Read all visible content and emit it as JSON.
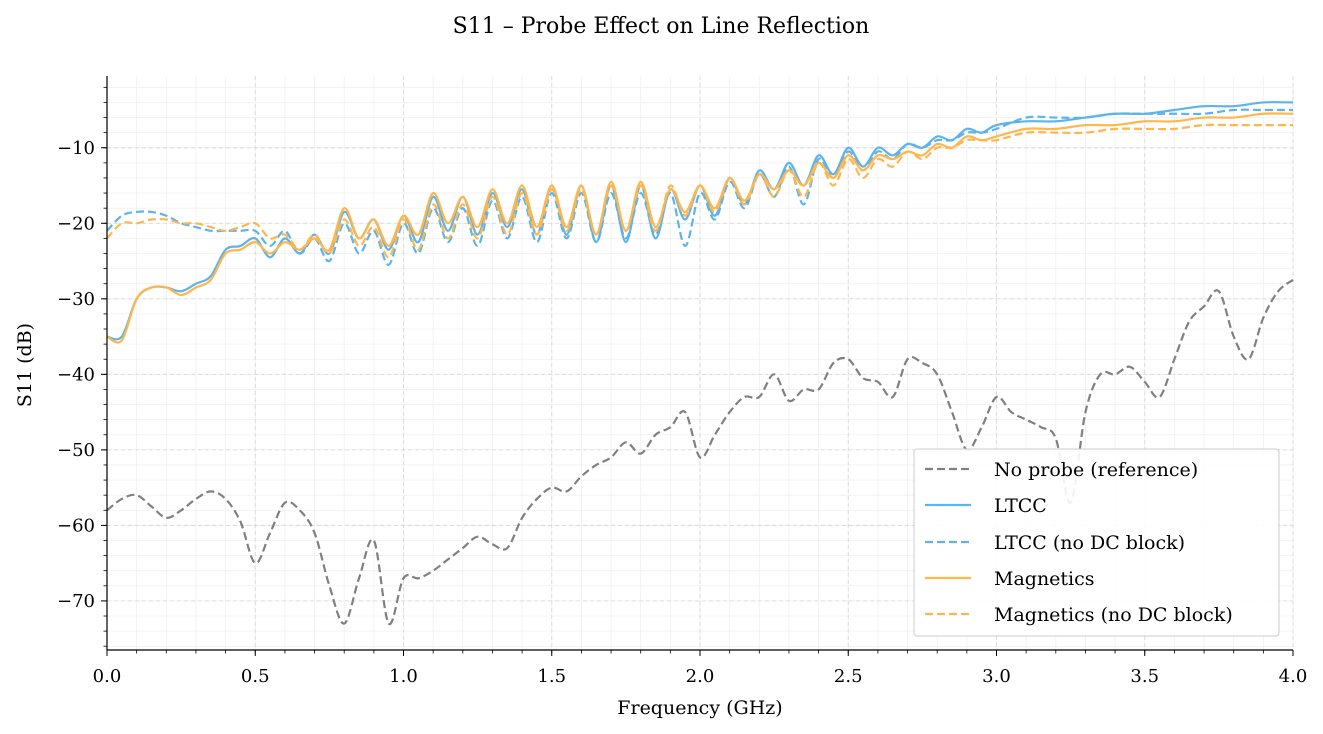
{
  "chart_data": {
    "type": "line",
    "title": "S11 – Probe Effect on Line Reflection",
    "xlabel": "Frequency (GHz)",
    "ylabel": "S11 (dB)",
    "xlim": [
      0.0,
      4.0
    ],
    "ylim": [
      -76.5,
      -0.5
    ],
    "xticks": [
      0.0,
      0.5,
      1.0,
      1.5,
      2.0,
      2.5,
      3.0,
      3.5,
      4.0
    ],
    "xtick_labels": [
      "0.0",
      "0.5",
      "1.0",
      "1.5",
      "2.0",
      "2.5",
      "3.0",
      "3.5",
      "4.0"
    ],
    "yticks": [
      -70,
      -60,
      -50,
      -40,
      -30,
      -20,
      -10
    ],
    "ytick_labels": [
      "−70",
      "−60",
      "−50",
      "−40",
      "−30",
      "−20",
      "−10"
    ],
    "grid": true,
    "minor_grid": true,
    "legend_position": "lower-right",
    "series": [
      {
        "name": "No probe (reference)",
        "color": "#808080",
        "dash": "dashed",
        "x": [
          0.0,
          0.05,
          0.1,
          0.15,
          0.2,
          0.25,
          0.3,
          0.35,
          0.4,
          0.45,
          0.5,
          0.55,
          0.6,
          0.65,
          0.7,
          0.75,
          0.8,
          0.85,
          0.9,
          0.95,
          1.0,
          1.05,
          1.1,
          1.15,
          1.2,
          1.25,
          1.3,
          1.35,
          1.4,
          1.45,
          1.5,
          1.55,
          1.6,
          1.65,
          1.7,
          1.75,
          1.8,
          1.85,
          1.9,
          1.95,
          2.0,
          2.05,
          2.1,
          2.15,
          2.2,
          2.25,
          2.3,
          2.35,
          2.4,
          2.45,
          2.5,
          2.55,
          2.6,
          2.65,
          2.7,
          2.75,
          2.8,
          2.85,
          2.9,
          2.95,
          3.0,
          3.05,
          3.1,
          3.15,
          3.2,
          3.25,
          3.3,
          3.35,
          3.4,
          3.45,
          3.5,
          3.55,
          3.6,
          3.65,
          3.7,
          3.75,
          3.8,
          3.85,
          3.9,
          3.95,
          4.0
        ],
        "y": [
          -58,
          -56.5,
          -56,
          -57.5,
          -59,
          -58,
          -56.5,
          -55.5,
          -56.5,
          -59.5,
          -65,
          -61,
          -57,
          -58,
          -61,
          -68,
          -73,
          -67,
          -62,
          -73,
          -67,
          -67,
          -66,
          -64.5,
          -63,
          -61.5,
          -62.5,
          -63,
          -59,
          -56.5,
          -55,
          -55.5,
          -53.5,
          -52,
          -51,
          -49,
          -50.5,
          -48,
          -47,
          -45,
          -51,
          -48,
          -45,
          -43,
          -43,
          -40,
          -43.5,
          -42,
          -42,
          -38.5,
          -38,
          -40.5,
          -41,
          -43,
          -38,
          -38.5,
          -40,
          -45,
          -50,
          -47,
          -43,
          -45,
          -46,
          -47,
          -48.5,
          -57,
          -45,
          -40,
          -40,
          -39,
          -41,
          -43,
          -38,
          -33,
          -31,
          -29,
          -35,
          -38,
          -32.5,
          -29,
          -27.5
        ]
      },
      {
        "name": "LTCC",
        "color": "#5DB3EB",
        "dash": "solid",
        "x": [
          0.0,
          0.05,
          0.1,
          0.15,
          0.2,
          0.25,
          0.3,
          0.35,
          0.4,
          0.45,
          0.5,
          0.55,
          0.6,
          0.65,
          0.7,
          0.75,
          0.8,
          0.85,
          0.9,
          0.95,
          1.0,
          1.05,
          1.1,
          1.15,
          1.2,
          1.25,
          1.3,
          1.35,
          1.4,
          1.45,
          1.5,
          1.55,
          1.6,
          1.65,
          1.7,
          1.75,
          1.8,
          1.85,
          1.9,
          1.95,
          2.0,
          2.05,
          2.1,
          2.15,
          2.2,
          2.25,
          2.3,
          2.35,
          2.4,
          2.45,
          2.5,
          2.55,
          2.6,
          2.65,
          2.7,
          2.75,
          2.8,
          2.85,
          2.9,
          2.95,
          3.0,
          3.1,
          3.2,
          3.3,
          3.4,
          3.5,
          3.6,
          3.7,
          3.8,
          3.9,
          4.0
        ],
        "y": [
          -35,
          -35,
          -30,
          -28.5,
          -28.5,
          -29,
          -28,
          -27,
          -23.5,
          -23,
          -22,
          -24.5,
          -22,
          -24,
          -21.5,
          -24,
          -18.5,
          -22,
          -19.5,
          -23.5,
          -19,
          -22.5,
          -16.5,
          -21,
          -16.5,
          -21.5,
          -16,
          -20.5,
          -15.5,
          -21.5,
          -15,
          -21.5,
          -15,
          -22.5,
          -15,
          -22.5,
          -15,
          -22,
          -15.5,
          -19.5,
          -15,
          -19,
          -14,
          -17.5,
          -13,
          -15.5,
          -12,
          -15,
          -11,
          -13.5,
          -10,
          -12.5,
          -10,
          -11,
          -9.5,
          -10,
          -8.5,
          -9,
          -7.5,
          -8,
          -7,
          -6.5,
          -6.5,
          -6,
          -5.5,
          -5.5,
          -5,
          -4.5,
          -4.5,
          -4,
          -4
        ]
      },
      {
        "name": "LTCC (no DC block)",
        "color": "#5DB3EB",
        "dash": "dashed",
        "x": [
          0.0,
          0.05,
          0.1,
          0.15,
          0.2,
          0.25,
          0.3,
          0.35,
          0.4,
          0.45,
          0.5,
          0.55,
          0.6,
          0.65,
          0.7,
          0.75,
          0.8,
          0.85,
          0.9,
          0.95,
          1.0,
          1.05,
          1.1,
          1.15,
          1.2,
          1.25,
          1.3,
          1.35,
          1.4,
          1.45,
          1.5,
          1.55,
          1.6,
          1.65,
          1.7,
          1.75,
          1.8,
          1.85,
          1.9,
          1.95,
          2.0,
          2.05,
          2.1,
          2.15,
          2.2,
          2.25,
          2.3,
          2.35,
          2.4,
          2.45,
          2.5,
          2.55,
          2.6,
          2.65,
          2.7,
          2.75,
          2.8,
          2.85,
          2.9,
          2.95,
          3.0,
          3.1,
          3.2,
          3.3,
          3.4,
          3.5,
          3.6,
          3.7,
          3.8,
          3.9,
          4.0
        ],
        "y": [
          -21,
          -19,
          -18.5,
          -18.5,
          -19,
          -20,
          -20.5,
          -21,
          -21,
          -21,
          -21,
          -23,
          -21,
          -24,
          -22,
          -25,
          -20,
          -24,
          -21,
          -25.5,
          -20,
          -24,
          -18,
          -22.5,
          -18,
          -23,
          -17,
          -22,
          -16.5,
          -22.5,
          -16,
          -22,
          -16,
          -22.5,
          -16,
          -22,
          -16,
          -21.5,
          -16,
          -23,
          -16,
          -19.5,
          -14.5,
          -18,
          -13.5,
          -16.5,
          -12.5,
          -17.5,
          -11.5,
          -14,
          -10.5,
          -13,
          -10.5,
          -11.5,
          -9.5,
          -10,
          -9,
          -9,
          -8,
          -8,
          -7.5,
          -6,
          -6,
          -6,
          -5.5,
          -5.5,
          -5.5,
          -5.5,
          -5,
          -5,
          -5
        ]
      },
      {
        "name": "Magnetics",
        "color": "#FFB74D",
        "dash": "solid",
        "x": [
          0.0,
          0.05,
          0.1,
          0.15,
          0.2,
          0.25,
          0.3,
          0.35,
          0.4,
          0.45,
          0.5,
          0.55,
          0.6,
          0.65,
          0.7,
          0.75,
          0.8,
          0.85,
          0.9,
          0.95,
          1.0,
          1.05,
          1.1,
          1.15,
          1.2,
          1.25,
          1.3,
          1.35,
          1.4,
          1.45,
          1.5,
          1.55,
          1.6,
          1.65,
          1.7,
          1.75,
          1.8,
          1.85,
          1.9,
          1.95,
          2.0,
          2.05,
          2.1,
          2.15,
          2.2,
          2.25,
          2.3,
          2.35,
          2.4,
          2.45,
          2.5,
          2.55,
          2.6,
          2.65,
          2.7,
          2.75,
          2.8,
          2.85,
          2.9,
          2.95,
          3.0,
          3.1,
          3.2,
          3.3,
          3.4,
          3.5,
          3.6,
          3.7,
          3.8,
          3.9,
          4.0
        ],
        "y": [
          -35,
          -35.5,
          -30,
          -28.5,
          -28.5,
          -29.5,
          -28.5,
          -27.5,
          -24,
          -23.5,
          -22.5,
          -24,
          -22.5,
          -23.5,
          -22,
          -23.5,
          -18,
          -22,
          -19.5,
          -23,
          -19,
          -21.5,
          -16,
          -20,
          -16.5,
          -20.5,
          -15.5,
          -20,
          -15,
          -20.5,
          -15,
          -20.5,
          -15,
          -21.5,
          -14.5,
          -21,
          -14.5,
          -20.5,
          -15.5,
          -18.5,
          -15,
          -18,
          -14,
          -17,
          -13.5,
          -15.5,
          -13,
          -15,
          -12,
          -14,
          -11,
          -13,
          -11,
          -11.5,
          -10.5,
          -11,
          -9.5,
          -10,
          -8.5,
          -9,
          -8.5,
          -7.5,
          -7.5,
          -7,
          -7,
          -6.5,
          -6.5,
          -6,
          -6,
          -5.5,
          -5.5
        ]
      },
      {
        "name": "Magnetics (no DC block)",
        "color": "#FFB74D",
        "dash": "dashed",
        "x": [
          0.0,
          0.05,
          0.1,
          0.15,
          0.2,
          0.25,
          0.3,
          0.35,
          0.4,
          0.45,
          0.5,
          0.55,
          0.6,
          0.65,
          0.7,
          0.75,
          0.8,
          0.85,
          0.9,
          0.95,
          1.0,
          1.05,
          1.1,
          1.15,
          1.2,
          1.25,
          1.3,
          1.35,
          1.4,
          1.45,
          1.5,
          1.55,
          1.6,
          1.65,
          1.7,
          1.75,
          1.8,
          1.85,
          1.9,
          1.95,
          2.0,
          2.05,
          2.1,
          2.15,
          2.2,
          2.25,
          2.3,
          2.35,
          2.4,
          2.45,
          2.5,
          2.55,
          2.6,
          2.65,
          2.7,
          2.75,
          2.8,
          2.85,
          2.9,
          2.95,
          3.0,
          3.1,
          3.2,
          3.3,
          3.4,
          3.5,
          3.6,
          3.7,
          3.8,
          3.9,
          4.0
        ],
        "y": [
          -22,
          -20,
          -20,
          -19.5,
          -19.5,
          -20,
          -20,
          -20.5,
          -21,
          -20.5,
          -20,
          -22,
          -21.5,
          -23.5,
          -21.5,
          -24,
          -19.5,
          -23,
          -20.5,
          -24.5,
          -19.5,
          -23.5,
          -17.5,
          -22,
          -17.5,
          -22,
          -16.5,
          -21.5,
          -16,
          -21.5,
          -15.5,
          -21,
          -15.5,
          -21.5,
          -15,
          -21,
          -15,
          -21,
          -15,
          -19,
          -15,
          -18.5,
          -14,
          -17.5,
          -13.5,
          -16.5,
          -13,
          -16.5,
          -12,
          -15,
          -11.5,
          -14,
          -11.5,
          -12.5,
          -10.5,
          -11.5,
          -10,
          -10,
          -9,
          -9,
          -9,
          -8,
          -8,
          -8,
          -7.5,
          -7.5,
          -7.5,
          -7,
          -7,
          -7,
          -7
        ]
      }
    ]
  }
}
